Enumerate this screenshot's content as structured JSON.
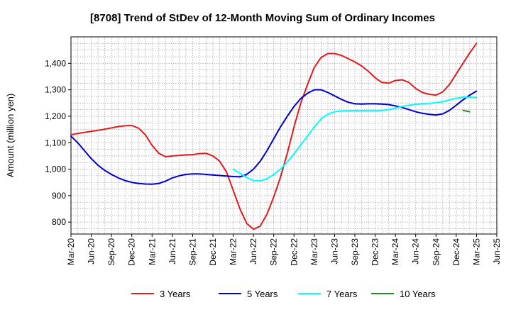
{
  "chart_data": {
    "type": "line",
    "title": "[8708]  Trend of StDev of 12-Month Moving Sum of Ordinary Incomes",
    "xlabel": "",
    "ylabel": "Amount (million yen)",
    "ylim": [
      755,
      1500
    ],
    "yticks": [
      800,
      900,
      1000,
      1100,
      1200,
      1300,
      1400
    ],
    "ytick_labels": [
      "800",
      "900",
      "1,000",
      "1,100",
      "1,200",
      "1,300",
      "1,400"
    ],
    "xlim": [
      "2020-03",
      "2025-06"
    ],
    "x_tick_labels": [
      "Mar-20",
      "Jun-20",
      "Sep-20",
      "Dec-20",
      "Mar-21",
      "Jun-21",
      "Sep-21",
      "Dec-21",
      "Mar-22",
      "Jun-22",
      "Sep-22",
      "Dec-22",
      "Mar-23",
      "Jun-23",
      "Sep-23",
      "Dec-23",
      "Mar-24",
      "Jun-24",
      "Sep-24",
      "Dec-24",
      "Mar-25",
      "Jun-25"
    ],
    "grid": true,
    "legend_position": "bottom",
    "series": [
      {
        "name": "3 Years",
        "color": "#e31a1c",
        "start": "2020-03",
        "values": [
          1130,
          1135,
          1139,
          1143,
          1147,
          1151,
          1156,
          1161,
          1164,
          1165,
          1155,
          1130,
          1090,
          1060,
          1047,
          1050,
          1052,
          1054,
          1055,
          1059,
          1060,
          1050,
          1030,
          990,
          920,
          850,
          795,
          773,
          785,
          830,
          895,
          970,
          1060,
          1160,
          1250,
          1320,
          1385,
          1422,
          1437,
          1437,
          1430,
          1418,
          1405,
          1390,
          1370,
          1345,
          1328,
          1325,
          1335,
          1338,
          1328,
          1305,
          1290,
          1283,
          1280,
          1292,
          1320,
          1360,
          1400,
          1440,
          1475
        ]
      },
      {
        "name": "5 Years",
        "color": "#0000cd",
        "start": "2020-03",
        "values": [
          1125,
          1100,
          1070,
          1040,
          1015,
          995,
          980,
          967,
          957,
          950,
          946,
          944,
          943,
          946,
          955,
          967,
          975,
          980,
          982,
          982,
          980,
          978,
          976,
          974,
          972,
          971,
          980,
          1000,
          1030,
          1070,
          1115,
          1160,
          1200,
          1237,
          1267,
          1287,
          1300,
          1300,
          1290,
          1277,
          1264,
          1253,
          1247,
          1246,
          1247,
          1247,
          1246,
          1244,
          1239,
          1233,
          1225,
          1217,
          1211,
          1207,
          1205,
          1209,
          1222,
          1242,
          1262,
          1280,
          1295
        ]
      },
      {
        "name": "7 Years",
        "color": "#00ffff",
        "start": "2022-03",
        "values": [
          1000,
          985,
          968,
          957,
          956,
          964,
          980,
          1000,
          1027,
          1058,
          1092,
          1125,
          1160,
          1190,
          1208,
          1217,
          1220,
          1221,
          1221,
          1221,
          1221,
          1221,
          1222,
          1225,
          1231,
          1237,
          1242,
          1245,
          1247,
          1249,
          1251,
          1255,
          1262,
          1268,
          1272,
          1272,
          1270
        ]
      },
      {
        "name": "10 Years",
        "color": "#228b22",
        "start": "2025-01",
        "values": [
          1222,
          1217
        ]
      }
    ]
  }
}
